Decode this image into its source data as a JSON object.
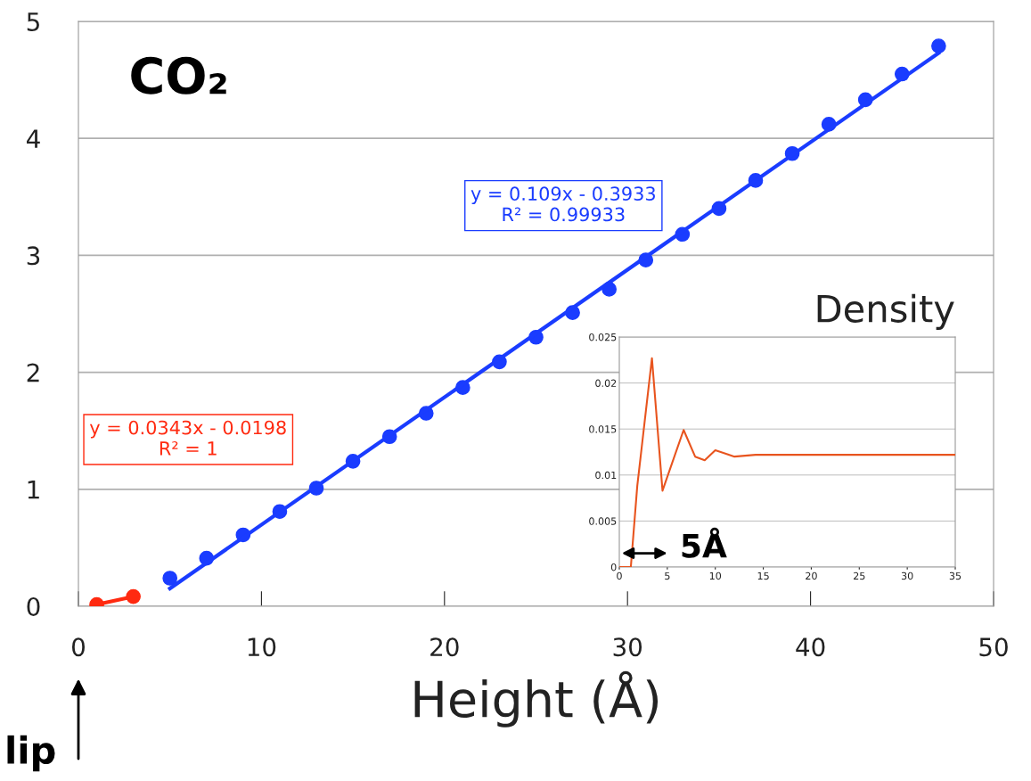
{
  "chart_data": [
    {
      "type": "scatter",
      "xlabel": "Height (Å)",
      "xlim": [
        0,
        50
      ],
      "xticks": [
        0,
        10,
        20,
        30,
        40,
        50
      ],
      "ylim": [
        0,
        5
      ],
      "yticks": [
        0,
        1,
        2,
        3,
        4,
        5
      ],
      "grid": "y",
      "marker": "circle",
      "series": [
        {
          "type": "line",
          "color": "#ff2a10",
          "x": [
            1,
            3
          ],
          "values": [
            0.015,
            0.083
          ]
        },
        {
          "type": "scatter",
          "color": "#1a3cff",
          "x": [
            5,
            7,
            9,
            11,
            13,
            15,
            17,
            19,
            21,
            23,
            25,
            27,
            29,
            31,
            33,
            35,
            37,
            39,
            41,
            43,
            45,
            47
          ],
          "values": [
            0.24,
            0.41,
            0.61,
            0.81,
            1.01,
            1.24,
            1.45,
            1.65,
            1.87,
            2.09,
            2.3,
            2.51,
            2.71,
            2.96,
            3.18,
            3.4,
            3.64,
            3.87,
            4.12,
            4.33,
            4.55,
            4.79
          ]
        },
        {
          "type": "line",
          "marker": "none",
          "color": "#1a3cff",
          "x": [
            5,
            47
          ],
          "values": [
            0.152,
            4.73
          ]
        }
      ],
      "annotations": [
        "CO₂",
        "y = 0.109x - 0.3933\nR² = 0.99933",
        "y = 0.0343x - 0.0198\nR² = 1",
        "lip"
      ]
    },
    {
      "type": "line",
      "title": "Density",
      "xlim": [
        0,
        35
      ],
      "xticks": [
        0,
        5,
        10,
        15,
        20,
        25,
        30,
        35
      ],
      "ylim": [
        0,
        0.025
      ],
      "yticks": [
        0,
        0.005,
        0.01,
        0.015,
        0.02,
        0.025
      ],
      "grid": "y",
      "series": [
        {
          "color": "#e8541e",
          "x": [
            0,
            1.2,
            1.87,
            3.4,
            4.5,
            6.7,
            7.9,
            8.9,
            10.0,
            12.0,
            14.2,
            35
          ],
          "values": [
            0,
            0,
            0.0088,
            0.0227,
            0.0083,
            0.0149,
            0.012,
            0.0116,
            0.0127,
            0.012,
            0.0122,
            0.0122
          ]
        }
      ],
      "annotations": [
        "5Å"
      ]
    }
  ]
}
